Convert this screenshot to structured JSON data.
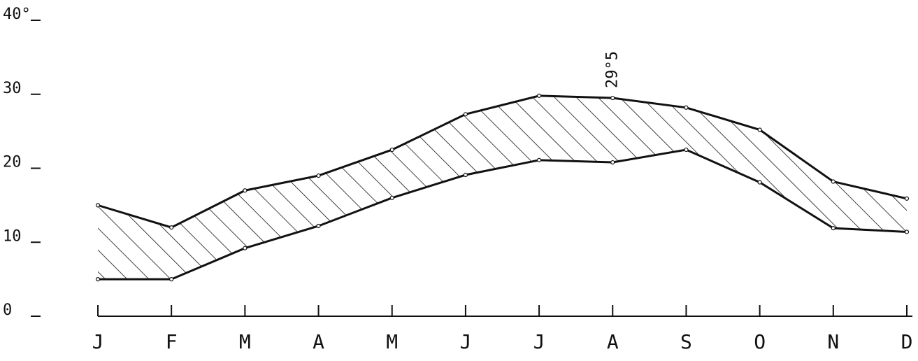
{
  "chart_data": {
    "type": "range-area",
    "categories": [
      "J",
      "F",
      "M",
      "A",
      "M",
      "J",
      "J",
      "A",
      "S",
      "O",
      "N",
      "D"
    ],
    "series": [
      {
        "color": "#111111",
        "values": [
          15,
          12,
          17,
          19,
          22.5,
          27.3,
          29.8,
          29.5,
          28.2,
          25.2,
          18.2,
          15.9
        ]
      },
      {
        "color": "#111111",
        "values": [
          5,
          5,
          9.2,
          12.2,
          16,
          19.1,
          21.1,
          20.8,
          22.5,
          18.1,
          11.9,
          11.4
        ]
      }
    ],
    "annotation": "29°5",
    "annotation_category": 7,
    "ylim": [
      0,
      40
    ],
    "yticks": [
      0,
      10,
      20,
      30,
      {
        "value": 40,
        "label": "40°"
      }
    ],
    "hatch": true
  }
}
